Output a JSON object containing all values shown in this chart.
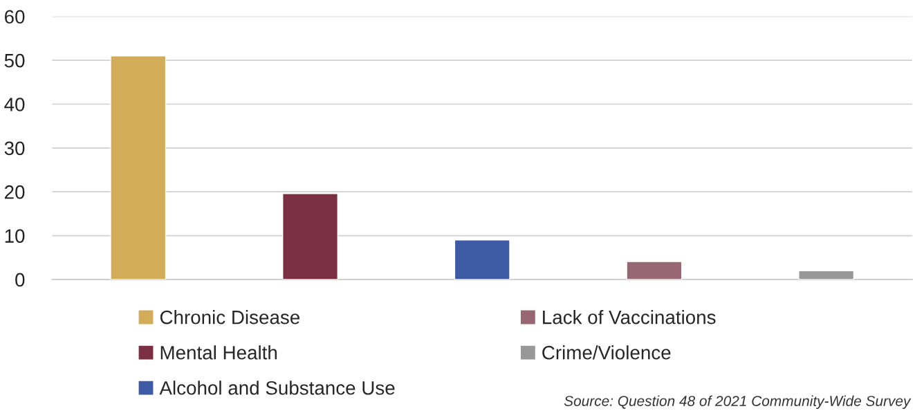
{
  "chart_data": {
    "type": "bar",
    "categories": [
      null,
      null,
      null,
      null,
      null
    ],
    "series": [
      {
        "name": "Chronic Disease",
        "color": "#d3ac5a",
        "values": [
          51,
          null,
          null,
          null,
          null
        ]
      },
      {
        "name": "Mental Health",
        "color": "#7a2f42",
        "values": [
          null,
          19.6,
          null,
          null,
          null
        ]
      },
      {
        "name": "Alcohol and Substance Use",
        "color": "#3d5ba5",
        "values": [
          null,
          null,
          9,
          null,
          null
        ]
      },
      {
        "name": "Lack of Vaccinations",
        "color": "#976873",
        "values": [
          null,
          null,
          null,
          4.1,
          null
        ]
      },
      {
        "name": "Crime/Violence",
        "color": "#989898",
        "values": [
          null,
          null,
          null,
          null,
          2
        ]
      }
    ],
    "ylim": [
      0,
      60
    ],
    "yticks": [
      0,
      10,
      20,
      30,
      40,
      50,
      60
    ],
    "grid": "y",
    "legend": "bottom",
    "annotations": [
      "Source: Question 48 of 2021 Community-Wide Survey"
    ]
  }
}
